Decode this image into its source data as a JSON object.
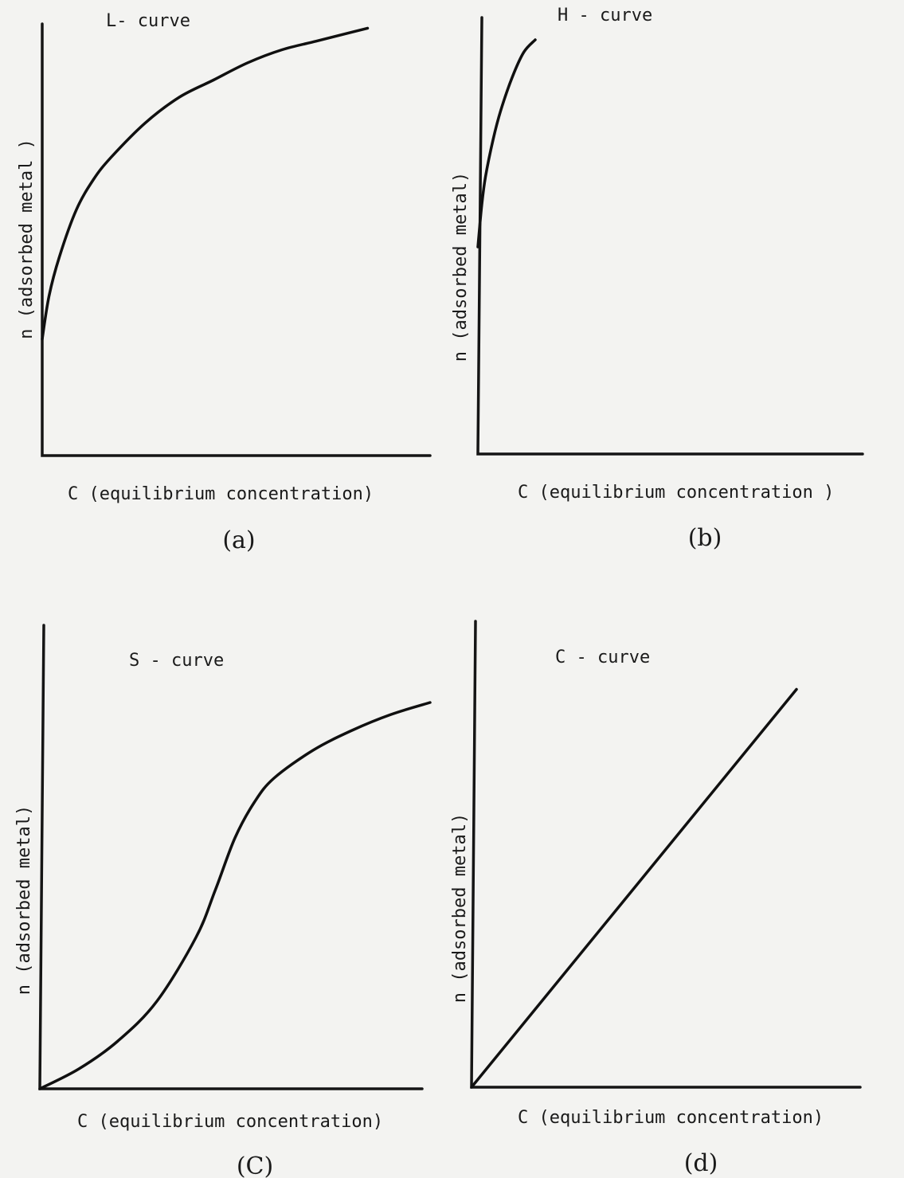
{
  "chart_data": [
    {
      "type": "line",
      "panel_label": "(a)",
      "title": "L- curve",
      "xlabel": "C (equilibrium concentration)",
      "ylabel": "n (adsorbed metal )",
      "xlim": [
        0,
        1
      ],
      "ylim": [
        0,
        1
      ],
      "series": [
        {
          "x": [
            0,
            0.02,
            0.05,
            0.1,
            0.15,
            0.2,
            0.3,
            0.4,
            0.5,
            0.6,
            0.7,
            0.8,
            0.9,
            0.95
          ],
          "y": [
            0.27,
            0.37,
            0.46,
            0.57,
            0.64,
            0.69,
            0.77,
            0.83,
            0.87,
            0.91,
            0.94,
            0.96,
            0.98,
            0.99
          ]
        }
      ]
    },
    {
      "type": "line",
      "panel_label": "(b)",
      "title": "H - curve",
      "xlabel": "C (equilibrium concentration )",
      "ylabel": "n (adsorbed metal)",
      "xlim": [
        0,
        1
      ],
      "ylim": [
        0,
        1
      ],
      "series": [
        {
          "x": [
            0,
            0.01,
            0.02,
            0.04,
            0.06,
            0.09,
            0.12,
            0.15
          ],
          "y": [
            0.5,
            0.6,
            0.67,
            0.76,
            0.83,
            0.91,
            0.97,
            1.0
          ]
        }
      ]
    },
    {
      "type": "line",
      "panel_label": "(C)",
      "title": "S - curve",
      "xlabel": "C (equilibrium concentration)",
      "ylabel": "n (adsorbed metal)",
      "xlim": [
        0,
        1
      ],
      "ylim": [
        0,
        1
      ],
      "series": [
        {
          "x": [
            0,
            0.1,
            0.2,
            0.3,
            0.4,
            0.45,
            0.5,
            0.55,
            0.6,
            0.7,
            0.8,
            0.9,
            1.0
          ],
          "y": [
            0.0,
            0.05,
            0.12,
            0.22,
            0.38,
            0.5,
            0.63,
            0.72,
            0.78,
            0.85,
            0.9,
            0.94,
            0.97
          ]
        }
      ]
    },
    {
      "type": "line",
      "panel_label": "(d)",
      "title": "C - curve",
      "xlabel": "C (equilibrium concentration)",
      "ylabel": "n (adsorbed metal)",
      "xlim": [
        0,
        1
      ],
      "ylim": [
        0,
        1
      ],
      "series": [
        {
          "x": [
            0,
            0.85
          ],
          "y": [
            0,
            0.9
          ]
        }
      ]
    }
  ]
}
